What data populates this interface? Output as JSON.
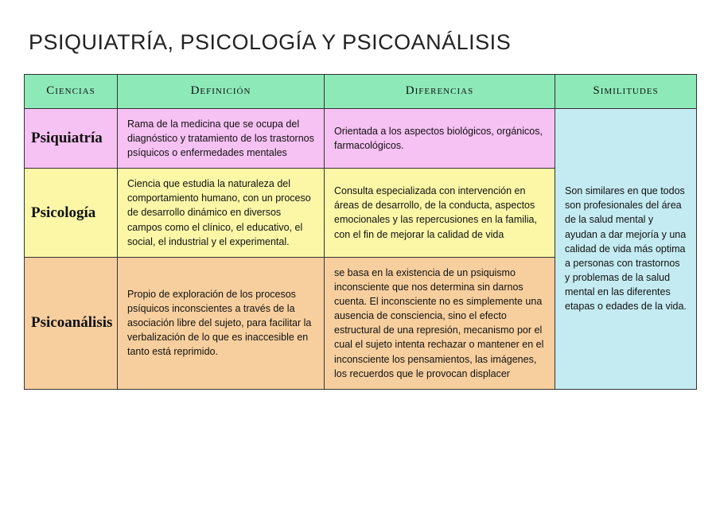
{
  "title": "PSIQUIATRÍA, PSICOLOGÍA Y PSICOANÁLISIS",
  "headers": {
    "col1": "Ciencias",
    "col2": "Definición",
    "col3": "Diferencias",
    "col4": "Similitudes"
  },
  "rows": [
    {
      "name": "Psiquiatría",
      "definicion": "Rama de la medicina que se ocupa del diagnóstico y tratamiento de los trastornos psíquicos o enfermedades mentales",
      "diferencias": "Orientada a los aspectos biológicos, orgánicos, farmacológicos."
    },
    {
      "name": "Psicología",
      "definicion": "Ciencia que estudia la naturaleza del comportamiento humano, con un proceso de desarrollo dinámico en diversos campos como el clínico, el educativo, el social, el industrial y el experimental.",
      "diferencias": "Consulta especializada con intervención en áreas de desarrollo, de la conducta, aspectos emocionales y las repercusiones en la familia, con el fin de mejorar la calidad de vida"
    },
    {
      "name": "Psicoanálisis",
      "definicion": "Propio de exploración de los procesos psíquicos inconscientes a través de la asociación libre del sujeto, para facilitar la verbalización de lo que es inaccesible en tanto está reprimido.",
      "diferencias": "se basa en la existencia de un psiquismo inconsciente que nos determina sin darnos cuenta. El inconsciente no es simplemente una ausencia de consciencia, sino el efecto estructural de una represión, mecanismo por el cual el sujeto intenta rechazar o mantener en el inconsciente los pensamientos, las imágenes, los recuerdos que le provocan displacer"
    }
  ],
  "similitudes": "Son similares en que todos son profesionales del área de la salud mental y ayudan a dar mejoría y una calidad de vida más optima a personas con trastornos y problemas de la salud mental en las diferentes etapas o edades de la vida.",
  "colors": {
    "header_bg": "#8de9b8",
    "psiquiatria_bg": "#f6c1f3",
    "psicologia_bg": "#fbf7a7",
    "psicoanalisis_bg": "#f7cf9e",
    "similitudes_bg": "#c4ebf2"
  }
}
